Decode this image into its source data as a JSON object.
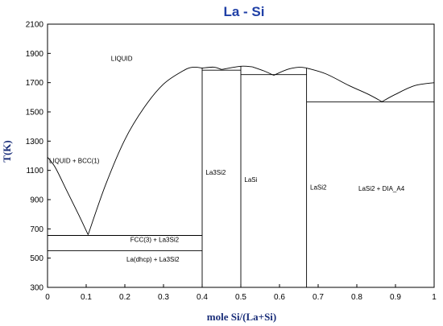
{
  "chart_data": {
    "type": "line",
    "title": "La - Si",
    "xlabel": "mole Si/(La+Si)",
    "ylabel": "T(K)",
    "xlim": [
      0,
      1
    ],
    "ylim": [
      300,
      2100
    ],
    "xticks": [
      0,
      0.1,
      0.2,
      0.3,
      0.4,
      0.5,
      0.6,
      0.7,
      0.8,
      0.9,
      1
    ],
    "xtick_labels": [
      "0",
      "0.1",
      "0.2",
      "0.3",
      "0.4",
      "0.5",
      "0.6",
      "0.7",
      "0.8",
      "0.9",
      "1"
    ],
    "yticks": [
      300,
      500,
      700,
      900,
      1100,
      1300,
      1500,
      1700,
      1900,
      2100
    ],
    "ytick_labels": [
      "300",
      "500",
      "700",
      "900",
      "1100",
      "1300",
      "1500",
      "1700",
      "1900",
      "2100"
    ],
    "grid": false,
    "lines": [
      {
        "x": [
          0,
          0.02,
          0.05,
          0.08,
          0.105
        ],
        "y": [
          1190,
          1120,
          960,
          800,
          660
        ]
      },
      {
        "x": [
          0.105,
          0.15,
          0.2,
          0.25,
          0.3,
          0.35,
          0.375,
          0.4
        ],
        "y": [
          660,
          1000,
          1310,
          1530,
          1690,
          1780,
          1805,
          1800
        ]
      },
      {
        "x": [
          0.4,
          0.43,
          0.45
        ],
        "y": [
          1800,
          1806,
          1790
        ]
      },
      {
        "x": [
          0.45,
          0.5,
          0.53
        ],
        "y": [
          1790,
          1812,
          1808
        ]
      },
      {
        "x": [
          0.53,
          0.56,
          0.585
        ],
        "y": [
          1808,
          1780,
          1750
        ]
      },
      {
        "x": [
          0.585,
          0.62,
          0.65,
          0.67
        ],
        "y": [
          1750,
          1790,
          1805,
          1800
        ]
      },
      {
        "x": [
          0.67,
          0.72,
          0.78,
          0.83,
          0.865
        ],
        "y": [
          1800,
          1760,
          1680,
          1620,
          1570
        ]
      },
      {
        "x": [
          0.865,
          0.9,
          0.95,
          1.0
        ],
        "y": [
          1570,
          1620,
          1680,
          1700
        ]
      },
      {
        "x": [
          0,
          0.4
        ],
        "y": [
          655,
          655
        ]
      },
      {
        "x": [
          0,
          0.4
        ],
        "y": [
          550,
          550
        ]
      },
      {
        "x": [
          0.4,
          0.5
        ],
        "y": [
          1785,
          1785
        ]
      },
      {
        "x": [
          0.5,
          0.67
        ],
        "y": [
          1755,
          1755
        ]
      },
      {
        "x": [
          0.67,
          1.0
        ],
        "y": [
          1568,
          1568
        ]
      },
      {
        "x": [
          0.4,
          0.4
        ],
        "y": [
          300,
          1800
        ]
      },
      {
        "x": [
          0.5,
          0.5
        ],
        "y": [
          300,
          1812
        ]
      },
      {
        "x": [
          0.67,
          0.67
        ],
        "y": [
          300,
          1800
        ]
      }
    ],
    "annotations": [
      {
        "text": "LIQUID",
        "x": 0.16,
        "y": 1850
      },
      {
        "text": "LIQUID + BCC(1)",
        "x": 0.0,
        "y": 1150
      },
      {
        "text": "La3Si2",
        "x": 0.405,
        "y": 1070
      },
      {
        "text": "LaSi",
        "x": 0.505,
        "y": 1020
      },
      {
        "text": "LaSi2",
        "x": 0.675,
        "y": 970
      },
      {
        "text": "LaSi2 + DIA_A4",
        "x": 0.8,
        "y": 960
      },
      {
        "text": "FCC(3) + La3Si2",
        "x": 0.21,
        "y": 610
      },
      {
        "text": "La(dhcp) + La3Si2",
        "x": 0.2,
        "y": 475
      }
    ]
  }
}
